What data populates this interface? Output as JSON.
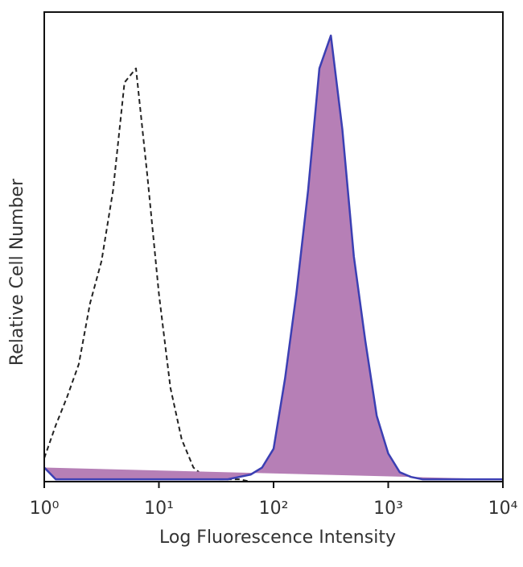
{
  "chart_data": {
    "type": "area",
    "x_label": "Log Fluorescence Intensity",
    "y_label": "Relative Cell Number",
    "xscale": "log",
    "x": [
      1,
      1.26,
      1.58,
      2,
      2.51,
      3.16,
      3.98,
      5.01,
      6.31,
      7.94,
      10,
      12.6,
      15.8,
      20,
      25.1,
      31.6,
      39.8,
      50.1,
      63.1,
      79.4,
      100,
      126,
      158,
      200,
      251,
      316,
      398,
      501,
      631,
      794,
      1000,
      1260,
      1580,
      2000,
      2510,
      3160,
      3980,
      5010,
      6310,
      7940,
      10000
    ],
    "series": [
      {
        "color": "#222222",
        "style": "dashed",
        "fill": false,
        "values": [
          5,
          12,
          18,
          25,
          38,
          47,
          62,
          85,
          88,
          65,
          40,
          20,
          9,
          3,
          1,
          0.5,
          0.5,
          0.5,
          0,
          0,
          0,
          0,
          0,
          0,
          0,
          0,
          0,
          0,
          0,
          0,
          0,
          0,
          0,
          0,
          0,
          0,
          0,
          0,
          0,
          0,
          0
        ]
      },
      {
        "color": "#3b3fb3",
        "fill_color": "#b67fb6",
        "style": "solid",
        "fill": true,
        "values": [
          3,
          0.5,
          0.5,
          0.5,
          0.5,
          0.5,
          0.5,
          0.5,
          0.5,
          0.5,
          0.5,
          0.5,
          0.5,
          0.5,
          0.5,
          0.5,
          0.5,
          1,
          1.5,
          3,
          7,
          22,
          40,
          62,
          88,
          95,
          75,
          48,
          30,
          14,
          6,
          2,
          1,
          0.5,
          0.5,
          0.5,
          0.5,
          0.5,
          0.5,
          0.5,
          0.5
        ]
      }
    ],
    "xlim": [
      1,
      10000
    ],
    "ylim": [
      0,
      100
    ],
    "xticks": [
      {
        "value": 1,
        "label": "10⁰"
      },
      {
        "value": 10,
        "label": "10¹"
      },
      {
        "value": 100,
        "label": "10²"
      },
      {
        "value": 1000,
        "label": "10³"
      },
      {
        "value": 10000,
        "label": "10⁴"
      }
    ]
  }
}
